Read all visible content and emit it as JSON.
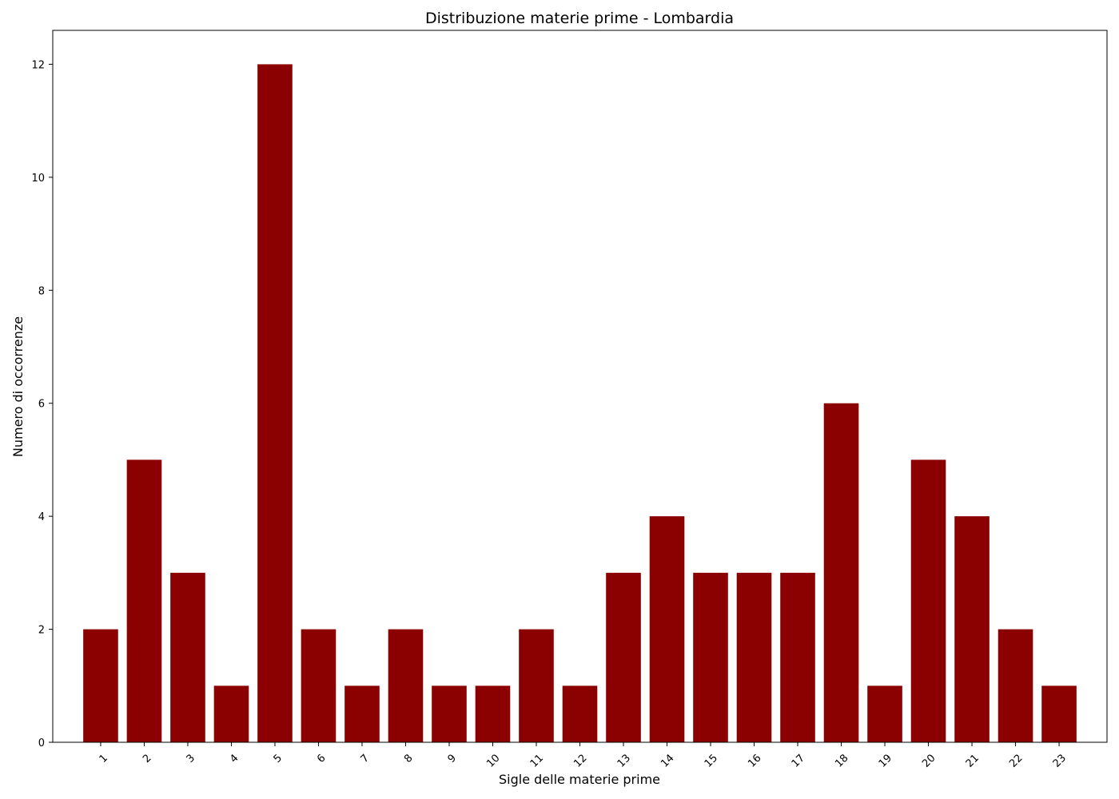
{
  "chart_data": {
    "type": "bar",
    "title": "Distribuzione materie prime - Lombardia",
    "xlabel": "Sigle delle materie prime",
    "ylabel": "Numero di occorrenze",
    "categories": [
      "1",
      "2",
      "3",
      "4",
      "5",
      "6",
      "7",
      "8",
      "9",
      "10",
      "11",
      "12",
      "13",
      "14",
      "15",
      "16",
      "17",
      "18",
      "19",
      "20",
      "21",
      "22",
      "23"
    ],
    "values": [
      2,
      5,
      3,
      1,
      12,
      2,
      1,
      2,
      1,
      1,
      2,
      1,
      3,
      4,
      3,
      3,
      3,
      6,
      1,
      5,
      4,
      2,
      1
    ],
    "ylim": [
      0,
      12.6
    ],
    "yticks": [
      0,
      2,
      4,
      6,
      8,
      10,
      12
    ],
    "grid": false,
    "bar_color": "#8b0000",
    "x_tick_rotation": 45
  }
}
